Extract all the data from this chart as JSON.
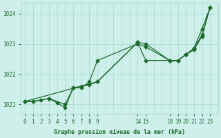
{
  "background_color": "#cff0ea",
  "grid_color": "#a8ddd7",
  "line_color": "#1e6b30",
  "title": "Graphe pression niveau de la mer (hPa)",
  "label_color": "#1e6b30",
  "ylim": [
    1020.7,
    1024.35
  ],
  "yticks": [
    1021,
    1022,
    1023,
    1024
  ],
  "xlim": [
    -0.5,
    24
  ],
  "xtick_positions": [
    0,
    1,
    2,
    3,
    4,
    5,
    6,
    7,
    8,
    9,
    14,
    15,
    18,
    19,
    20,
    21,
    22,
    23
  ],
  "xtick_labels": [
    "0",
    "1",
    "2",
    "3",
    "4",
    "5",
    "6",
    "7",
    "8",
    "9",
    "14",
    "15",
    "18",
    "19",
    "20",
    "21",
    "22",
    "23"
  ],
  "line1_x": [
    0,
    1,
    2,
    3,
    4,
    5,
    6,
    7,
    8,
    9,
    14,
    15,
    18,
    19,
    20,
    21,
    22,
    23
  ],
  "line1_y": [
    1021.1,
    1021.1,
    1021.15,
    1021.2,
    1021.05,
    1020.9,
    1021.55,
    1021.6,
    1021.65,
    1021.75,
    1023.05,
    1023.0,
    1022.45,
    1022.45,
    1022.65,
    1022.85,
    1023.5,
    1024.2
  ],
  "line2_x": [
    0,
    1,
    3,
    5,
    6,
    7,
    8,
    9,
    14,
    15,
    18,
    19,
    20,
    21,
    22,
    23
  ],
  "line2_y": [
    1021.1,
    1021.1,
    1021.2,
    1021.0,
    1021.55,
    1021.55,
    1021.75,
    1022.45,
    1023.0,
    1022.9,
    1022.45,
    1022.45,
    1022.65,
    1022.8,
    1023.25,
    1024.2
  ],
  "line3_x": [
    0,
    9,
    14,
    15,
    18,
    19,
    20,
    21,
    22,
    23
  ],
  "line3_y": [
    1021.1,
    1021.75,
    1023.05,
    1022.45,
    1022.45,
    1022.45,
    1022.65,
    1022.85,
    1023.3,
    1024.2
  ]
}
